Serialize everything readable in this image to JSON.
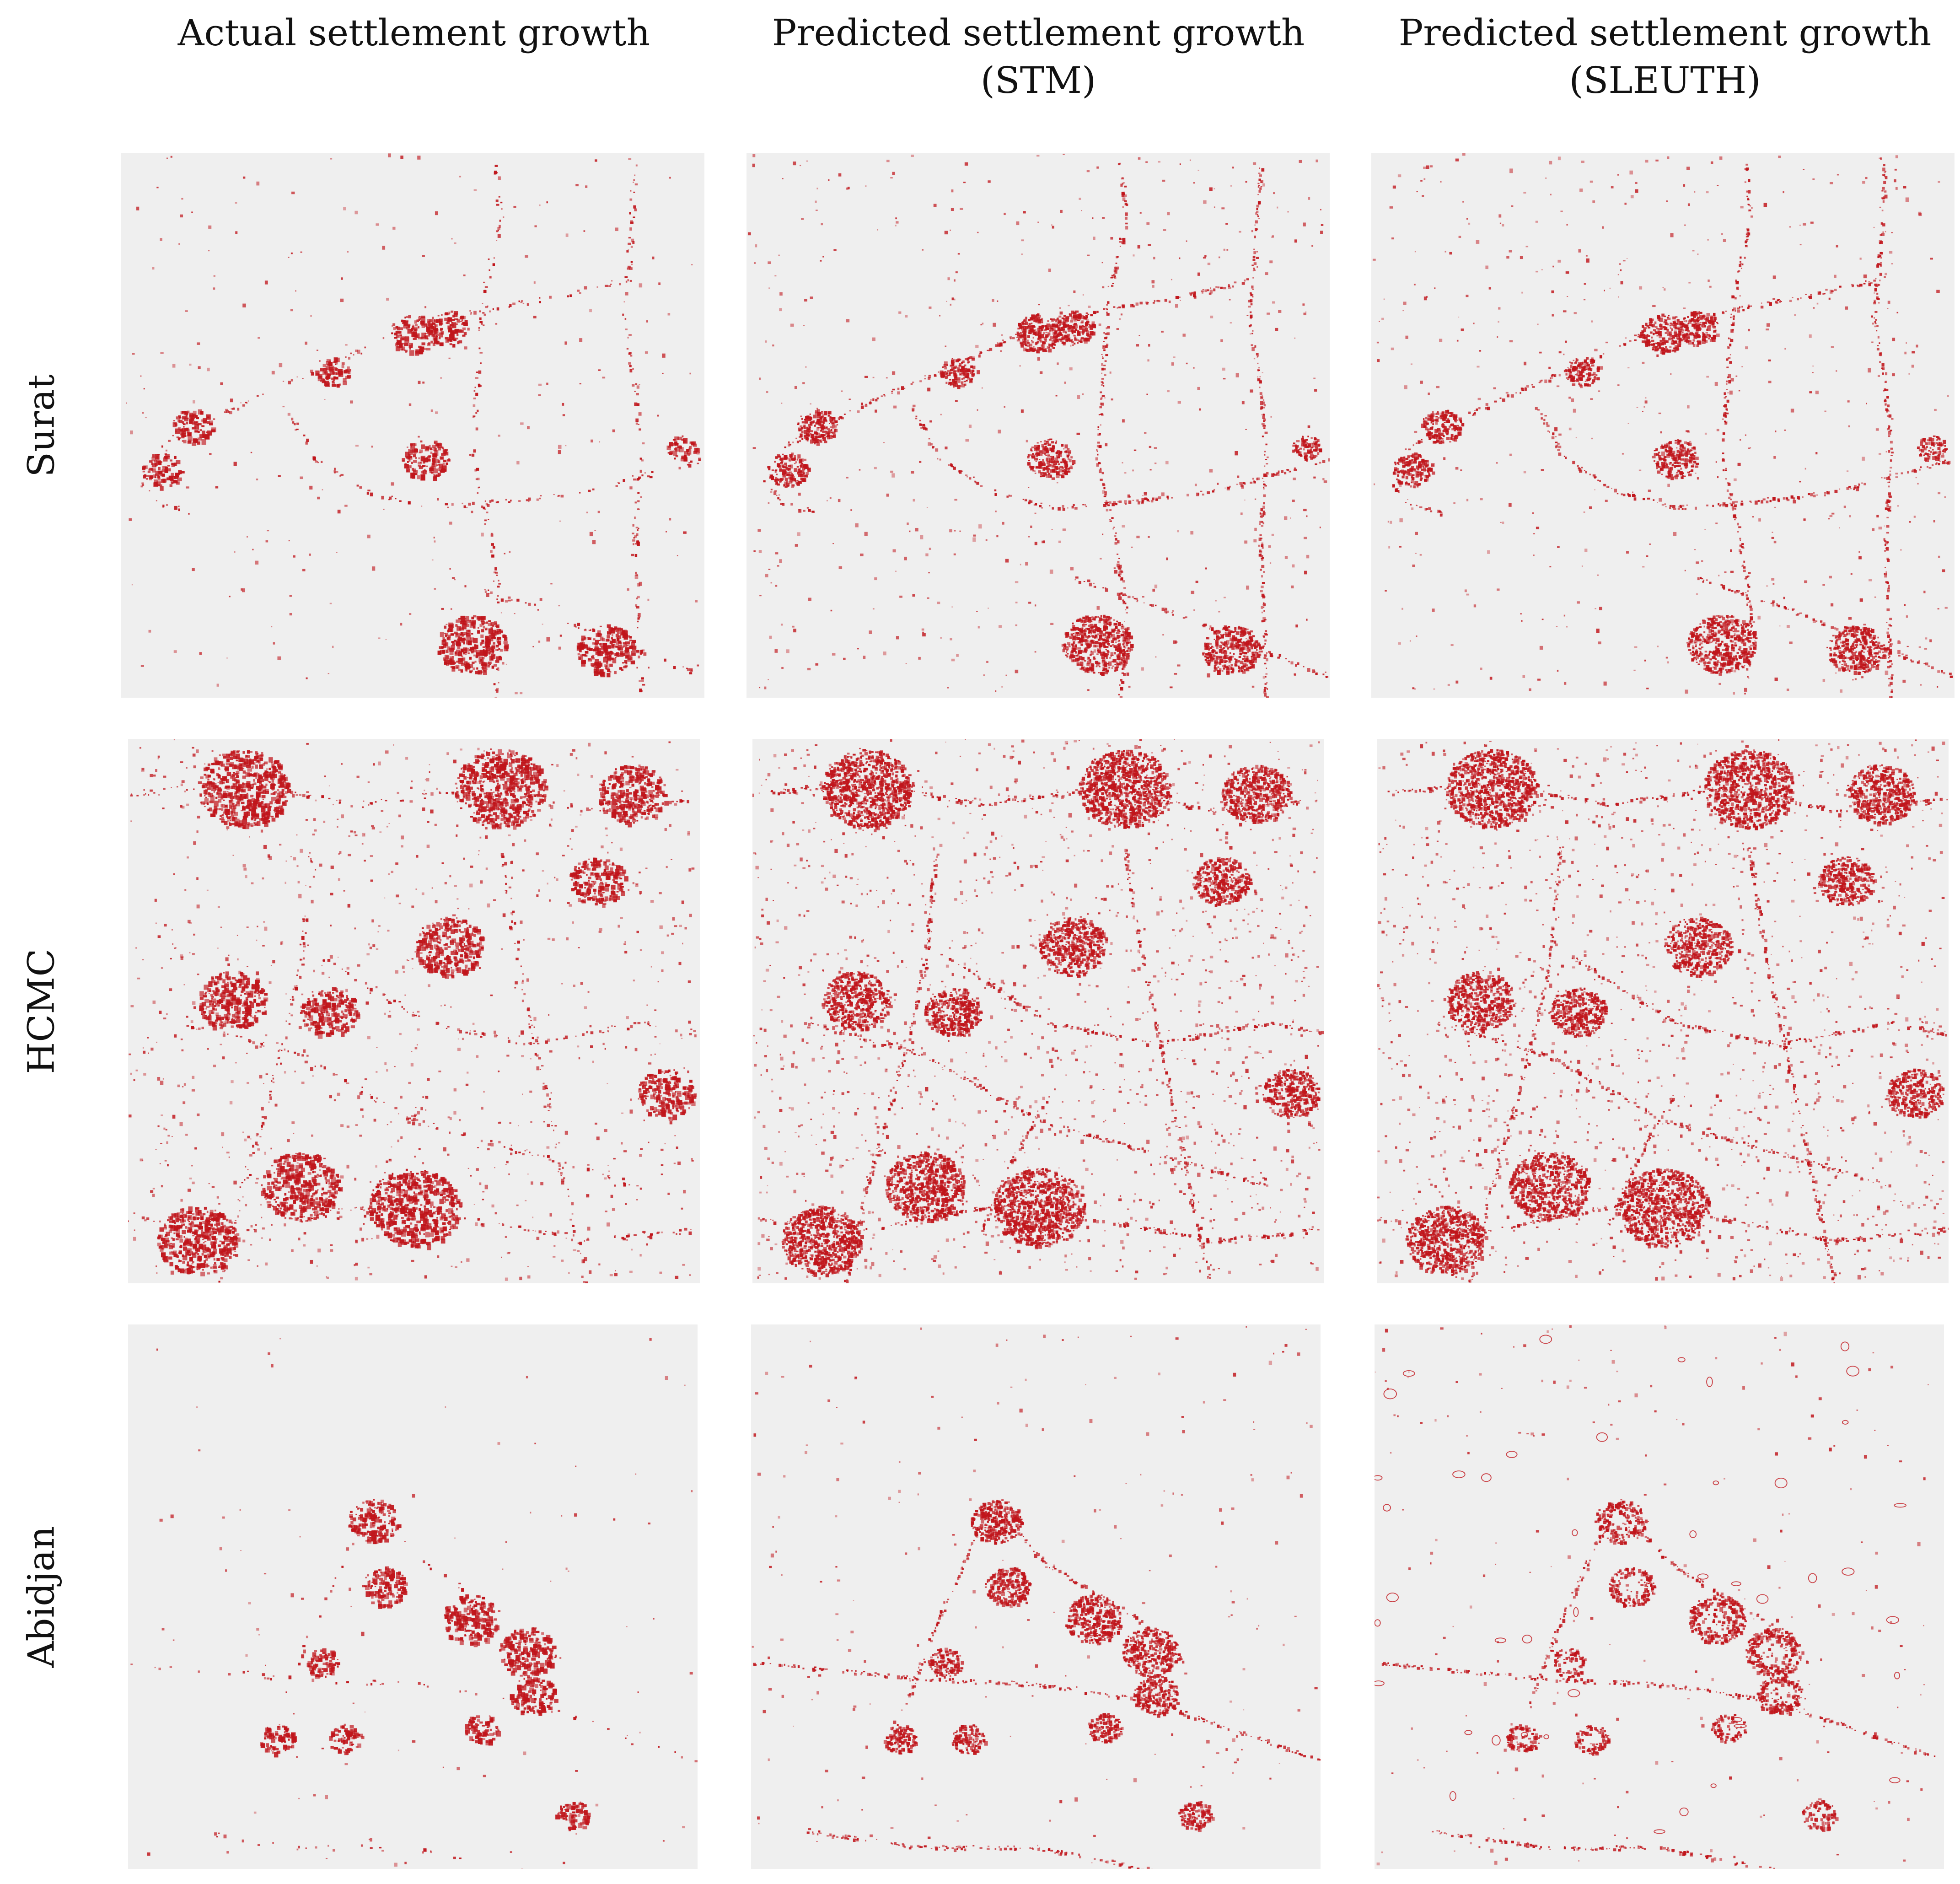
{
  "columns": [
    {
      "line1": "Actual settlement growth",
      "line2": ""
    },
    {
      "line1": "Predicted settlement growth",
      "line2": "(STM)"
    },
    {
      "line1": "Predicted settlement growth",
      "line2": "(SLEUTH)"
    }
  ],
  "rows": [
    {
      "label": "Surat"
    },
    {
      "label": "HCMC"
    },
    {
      "label": "Abidjan"
    }
  ],
  "colors": {
    "background": "#efefef",
    "growth": "#c0151b"
  }
}
